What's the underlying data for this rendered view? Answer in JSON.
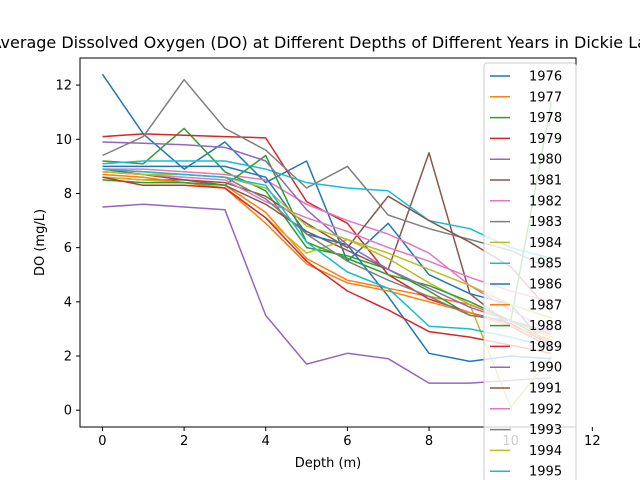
{
  "chart_data": {
    "type": "line",
    "title": "Average Dissolved Oxygen (DO) at Different Depths of Different Years in Dickie Lake",
    "xlabel": "Depth (m)",
    "ylabel": "DO (mg/L)",
    "xlim": [
      -0.55,
      11.6
    ],
    "ylim": [
      -0.62,
      13.0
    ],
    "xticks": [
      0,
      2,
      4,
      6,
      8,
      10,
      12
    ],
    "yticks": [
      0,
      2,
      4,
      6,
      8,
      10,
      12
    ],
    "grid": false,
    "legend_position": "upper right",
    "series": [
      {
        "name": "1976",
        "color": "#1f77b4",
        "x": [
          0,
          1,
          2,
          3,
          4,
          5,
          6,
          7,
          8,
          9,
          10,
          11
        ],
        "y": [
          12.4,
          10.2,
          8.9,
          9.9,
          8.4,
          9.2,
          5.5,
          6.9,
          5.0,
          4.3,
          3.9,
          2.2
        ]
      },
      {
        "name": "1977",
        "color": "#ff7f0e",
        "x": [
          0,
          1,
          2,
          3,
          4,
          5,
          6,
          7,
          8,
          9,
          10,
          11
        ],
        "y": [
          8.8,
          8.7,
          8.5,
          8.3,
          7.3,
          5.6,
          4.8,
          4.5,
          4.2,
          3.9,
          3.3,
          2.7
        ]
      },
      {
        "name": "1978",
        "color": "#2ca02c",
        "x": [
          0,
          1,
          2,
          3,
          4,
          5,
          6,
          7,
          8,
          9,
          10,
          11
        ],
        "y": [
          9.2,
          9.1,
          10.4,
          8.8,
          8.1,
          6.0,
          5.7,
          5.2,
          4.4,
          3.5,
          3.3,
          2.5
        ]
      },
      {
        "name": "1979",
        "color": "#d62728",
        "x": [
          0,
          1,
          2,
          3,
          4,
          5,
          6,
          7,
          8,
          9,
          10,
          11
        ],
        "y": [
          10.1,
          10.2,
          10.15,
          10.1,
          10.05,
          7.7,
          6.9,
          5.0,
          4.1,
          3.6,
          3.2,
          2.4
        ]
      },
      {
        "name": "1980",
        "color": "#9467bd",
        "x": [
          0,
          1,
          2,
          3,
          4,
          5,
          6,
          7,
          8,
          9,
          10,
          11
        ],
        "y": [
          7.5,
          7.6,
          7.5,
          7.4,
          3.5,
          1.7,
          2.1,
          1.9,
          1.0,
          1.0,
          1.1,
          1.2
        ]
      },
      {
        "name": "1981",
        "color": "#8c564b",
        "x": [
          0,
          1,
          2,
          3,
          4,
          5,
          6,
          7,
          8,
          9,
          10,
          11
        ],
        "y": [
          8.6,
          8.5,
          8.5,
          8.3,
          7.6,
          6.6,
          5.9,
          5.2,
          9.5,
          4.3,
          3.1,
          2.3
        ]
      },
      {
        "name": "1982",
        "color": "#e377c2",
        "x": [
          0,
          1,
          2,
          3,
          4,
          5,
          6,
          7,
          8,
          9,
          10,
          11
        ],
        "y": [
          8.9,
          8.9,
          8.8,
          8.7,
          8.5,
          7.6,
          7.0,
          6.5,
          5.8,
          4.6,
          3.7,
          2.9
        ]
      },
      {
        "name": "1983",
        "color": "#7f7f7f",
        "x": [
          0,
          1,
          2,
          3,
          4,
          5,
          6,
          7,
          8,
          9,
          10,
          11
        ],
        "y": [
          9.4,
          10.1,
          12.2,
          10.4,
          9.6,
          8.2,
          9.0,
          7.2,
          6.7,
          6.3,
          5.9,
          5.2
        ]
      },
      {
        "name": "1984",
        "color": "#bcbd22",
        "x": [
          0,
          1,
          2,
          3,
          4,
          5,
          6,
          7,
          8,
          9,
          10,
          11
        ],
        "y": [
          8.6,
          8.5,
          8.4,
          8.2,
          7.1,
          5.8,
          6.3,
          5.6,
          4.7,
          3.9,
          0.1,
          2.0
        ]
      },
      {
        "name": "1985",
        "color": "#17becf",
        "x": [
          0,
          1,
          2,
          3,
          4,
          5,
          6,
          7,
          8,
          9,
          10,
          11
        ],
        "y": [
          9.1,
          9.2,
          9.2,
          9.2,
          8.9,
          8.4,
          8.2,
          8.1,
          7.0,
          6.7,
          6.0,
          5.6
        ]
      },
      {
        "name": "1986",
        "color": "#1f77b4",
        "x": [
          0,
          1,
          2,
          3,
          4,
          5,
          6,
          7,
          8,
          9,
          10,
          11
        ],
        "y": [
          9.0,
          9.0,
          9.0,
          9.0,
          8.6,
          6.5,
          6.1,
          4.2,
          2.1,
          1.8,
          2.0,
          1.9
        ]
      },
      {
        "name": "1987",
        "color": "#ff7f0e",
        "x": [
          0,
          1,
          2,
          3,
          4,
          5,
          6,
          7,
          8,
          9,
          10,
          11
        ],
        "y": [
          8.7,
          8.6,
          8.4,
          8.2,
          6.9,
          5.4,
          4.7,
          4.4,
          4.0,
          3.6,
          3.1,
          2.6
        ]
      },
      {
        "name": "1988",
        "color": "#2ca02c",
        "x": [
          0,
          1,
          2,
          3,
          4,
          5,
          6,
          7,
          8,
          9,
          10,
          11
        ],
        "y": [
          8.5,
          8.4,
          8.4,
          8.3,
          9.4,
          6.2,
          5.6,
          5.0,
          4.6,
          4.0,
          3.3,
          11.4
        ]
      },
      {
        "name": "1989",
        "color": "#d62728",
        "x": [
          0,
          1,
          2,
          3,
          4,
          5,
          6,
          7,
          8,
          9,
          10,
          11
        ],
        "y": [
          8.6,
          8.3,
          8.3,
          8.2,
          7.1,
          5.5,
          4.4,
          3.7,
          2.9,
          2.7,
          2.4,
          2.1
        ]
      },
      {
        "name": "1990",
        "color": "#9467bd",
        "x": [
          0,
          1,
          2,
          3,
          4,
          5,
          6,
          7,
          8,
          9,
          10,
          11
        ],
        "y": [
          9.9,
          9.85,
          9.8,
          9.7,
          9.2,
          7.4,
          6.1,
          5.2,
          4.5,
          3.8,
          3.3,
          2.9
        ]
      },
      {
        "name": "1991",
        "color": "#8c564b",
        "x": [
          0,
          1,
          2,
          3,
          4,
          5,
          6,
          7,
          8,
          9,
          10,
          11
        ],
        "y": [
          8.9,
          8.7,
          8.5,
          8.4,
          7.9,
          6.9,
          6.0,
          7.9,
          7.0,
          6.2,
          5.3,
          3.6
        ]
      },
      {
        "name": "1992",
        "color": "#e377c2",
        "x": [
          0,
          1,
          2,
          3,
          4,
          5,
          6,
          7,
          8,
          9,
          10,
          11
        ],
        "y": [
          8.8,
          8.7,
          8.6,
          8.5,
          7.7,
          7.1,
          6.6,
          6.0,
          5.5,
          4.9,
          4.4,
          4.0
        ]
      },
      {
        "name": "1993",
        "color": "#7f7f7f",
        "x": [
          0,
          1,
          2,
          3,
          4,
          5,
          6,
          7,
          8,
          9,
          10,
          11
        ],
        "y": [
          8.9,
          8.8,
          8.7,
          8.6,
          7.8,
          6.5,
          5.5,
          4.8,
          4.2,
          3.5,
          3.3,
          2.8
        ]
      },
      {
        "name": "1994",
        "color": "#bcbd22",
        "x": [
          0,
          1,
          2,
          3,
          4,
          5,
          6,
          7,
          8,
          9,
          10,
          11
        ],
        "y": [
          8.8,
          8.7,
          8.7,
          8.6,
          8.2,
          6.8,
          6.3,
          5.8,
          5.2,
          4.6,
          3.9,
          3.4
        ]
      },
      {
        "name": "1995",
        "color": "#17becf",
        "x": [
          0,
          1,
          2,
          3,
          4,
          5,
          6,
          7,
          8,
          9,
          10,
          11
        ],
        "y": [
          8.9,
          8.8,
          8.7,
          8.6,
          8.3,
          6.2,
          5.1,
          4.5,
          3.1,
          3.0,
          2.7,
          2.3
        ]
      }
    ]
  }
}
